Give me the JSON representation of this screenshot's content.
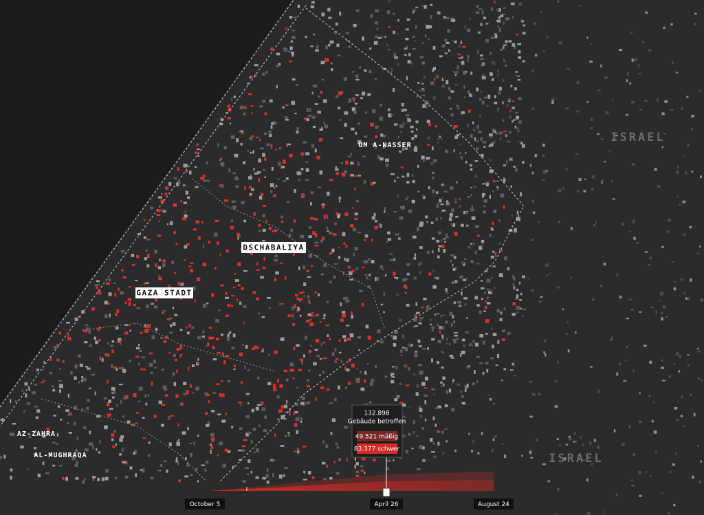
{
  "map": {
    "places": [
      "UM A-NASSER",
      "DSCHABALIYA",
      "GAZA STADT",
      "AZ-ZAHRA",
      "AL-MUGHRAQA"
    ],
    "regions": [
      "ISRAEL",
      "ISRAEL"
    ]
  },
  "timeline": {
    "dates": [
      "October 5",
      "April 26",
      "August 24"
    ],
    "tooltip": {
      "total": "132.898",
      "total_label": "Gebäude betroffen",
      "moderate": "49.521 mäßig",
      "severe": "83.377 schwer"
    }
  }
}
